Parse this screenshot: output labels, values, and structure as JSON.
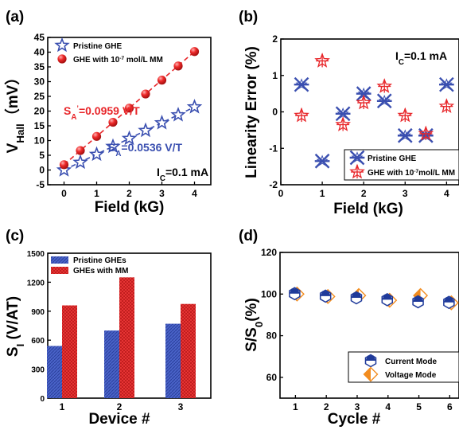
{
  "colors": {
    "blue": "#3a4fb0",
    "red": "#e8262a",
    "orange": "#f28c1f",
    "navy": "#1f3a9a"
  },
  "chart_data": [
    {
      "panel": "(a)",
      "type": "scatter",
      "xlabel": "Field (kG)",
      "ylabel": "V",
      "ylabel_sub": "Hall",
      "ylabel_unit": "（mV）",
      "xlim": [
        -0.5,
        4.5
      ],
      "ylim": [
        -5,
        45
      ],
      "xticks": [
        "0",
        "1",
        "2",
        "3",
        "4"
      ],
      "yticks": [
        "-5",
        "0",
        "5",
        "10",
        "15",
        "20",
        "25",
        "30",
        "35",
        "40",
        "45"
      ],
      "grid": false,
      "legend_position": "top-left",
      "series": [
        {
          "name": "Pristine GHE",
          "marker": "open-star",
          "color": "#3a4fb0",
          "x": [
            0,
            0.5,
            1,
            1.5,
            2,
            2.5,
            3,
            3.5,
            4
          ],
          "y": [
            0,
            2.6,
            5.3,
            8.0,
            10.7,
            13.4,
            16.0,
            18.7,
            21.4
          ]
        },
        {
          "name": "GHE with 10",
          "name_sup": "-7",
          "name_rest": " mol/L MM",
          "marker": "filled-circle",
          "color": "#e8262a",
          "x": [
            0,
            0.5,
            1,
            1.5,
            2,
            2.5,
            3,
            3.5,
            4
          ],
          "y": [
            1.8,
            6.6,
            11.4,
            16.2,
            21.0,
            25.8,
            30.5,
            35.3,
            40.2
          ]
        }
      ],
      "annotations": [
        {
          "text_a": "S",
          "sub": "A",
          "prime": "’",
          "text_b": "=0.0959 V/T",
          "color": "#e8262a"
        },
        {
          "text_a": "S",
          "sub": "A",
          "prime": "",
          "text_b": "=0.0536 V/T",
          "color": "#3a4fb0"
        },
        {
          "text_a": "I",
          "sub": "C",
          "prime": "",
          "text_b": "=0.1 mA",
          "color": "#000000"
        }
      ]
    },
    {
      "panel": "(b)",
      "type": "scatter",
      "xlabel": "Field (kG)",
      "ylabel": "Linearity Error (%)",
      "xlim": [
        0,
        4.3
      ],
      "ylim": [
        -2,
        2
      ],
      "xticks": [
        "0",
        "1",
        "2",
        "3",
        "4"
      ],
      "yticks": [
        "-2",
        "-1",
        "0",
        "1",
        "2"
      ],
      "grid": false,
      "legend_position": "bottom-right",
      "series": [
        {
          "name": "Pristine GHE",
          "marker": "asterisk",
          "color": "#3a4fb0",
          "x": [
            0.5,
            1,
            1.5,
            2,
            2.5,
            3,
            3.5,
            4
          ],
          "y": [
            0.75,
            -1.35,
            -0.05,
            0.5,
            0.3,
            -0.65,
            -0.65,
            0.75
          ]
        },
        {
          "name": "GHE with 10",
          "name_sup": "-7",
          "name_rest": "mol/L MM",
          "marker": "open-star-cross",
          "color": "#e8262a",
          "x": [
            0.5,
            1,
            1.5,
            2,
            2.5,
            3,
            3.5,
            4
          ],
          "y": [
            -0.1,
            1.4,
            -0.35,
            0.25,
            0.7,
            -0.1,
            -0.6,
            0.15
          ]
        }
      ],
      "annotations": [
        {
          "text_a": "I",
          "sub": "C",
          "prime": "",
          "text_b": "=0.1 mA",
          "color": "#000000"
        }
      ]
    },
    {
      "panel": "(c)",
      "type": "bar",
      "xlabel": "Device #",
      "ylabel": "S",
      "ylabel_sub": "I",
      "ylabel_unit": " (V/AT)",
      "categories": [
        "1",
        "2",
        "3"
      ],
      "ylim": [
        0,
        1500
      ],
      "yticks": [
        "0",
        "300",
        "600",
        "900",
        "1200",
        "1500"
      ],
      "grid": false,
      "legend_position": "top-left",
      "series": [
        {
          "name": "Pristine GHEs",
          "color": "#3a4fb0",
          "values": [
            540,
            700,
            770
          ]
        },
        {
          "name": "GHEs with MM",
          "color": "#e8262a",
          "values": [
            960,
            1250,
            975
          ]
        }
      ]
    },
    {
      "panel": "(d)",
      "type": "scatter",
      "xlabel": "Cycle #",
      "ylabel": "S/S",
      "ylabel_sub": "0",
      "ylabel_unit": "(%)",
      "xlim": [
        0.5,
        6.3
      ],
      "ylim": [
        50,
        120
      ],
      "xticks": [
        "1",
        "2",
        "3",
        "4",
        "5",
        "6"
      ],
      "yticks": [
        "60",
        "80",
        "100",
        "120"
      ],
      "grid": false,
      "legend_position": "bottom-right",
      "series": [
        {
          "name": "Current Mode",
          "marker": "hexagon",
          "color": "#1f3a9a",
          "x": [
            1,
            2,
            3,
            4,
            5,
            6
          ],
          "y": [
            100.2,
            99.0,
            98.2,
            97.3,
            96.3,
            96.0
          ]
        },
        {
          "name": "Voltage Mode",
          "marker": "diamond",
          "color": "#f28c1f",
          "x": [
            1,
            2,
            3,
            4,
            5,
            6
          ],
          "y": [
            100.0,
            98.8,
            99.3,
            97.0,
            99.3,
            95.8
          ]
        }
      ]
    }
  ]
}
